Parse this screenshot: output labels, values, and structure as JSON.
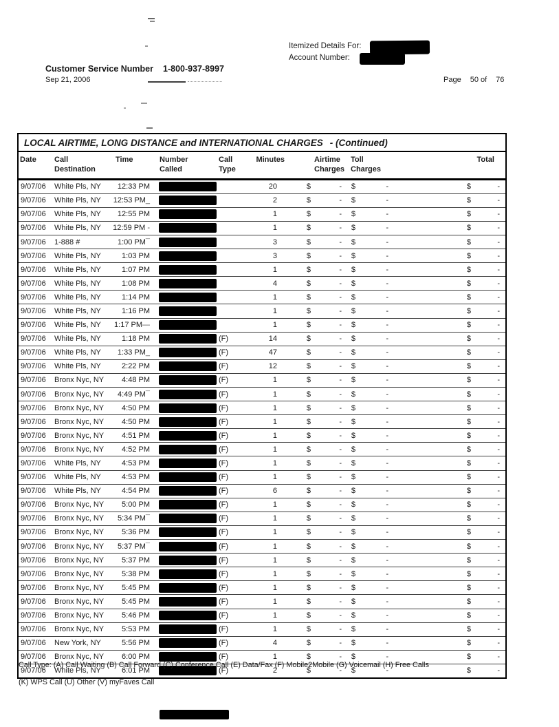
{
  "header": {
    "itemized_label": "Itemized Details For:",
    "account_label": "Account Number:",
    "customer_service_label": "Customer Service Number",
    "customer_service_number": "1-800-937-8997",
    "statement_date": "Sep 21, 2006",
    "page_label": "Page",
    "page_current": "50 of",
    "page_total": "76"
  },
  "table": {
    "title": "LOCAL AIRTIME, LONG DISTANCE and INTERNATIONAL CHARGES",
    "title_suffix": "- (Continued)",
    "currency_symbol": "$",
    "no_charge": "-",
    "columns": {
      "date": "Date",
      "destination": "Call\nDestination",
      "time": "Time",
      "number": "Number\nCalled",
      "type": "Call\nType",
      "minutes": "Minutes",
      "airtime": "Airtime\nCharges",
      "toll": "Toll\nCharges",
      "total": "Total"
    },
    "rows": [
      {
        "date": "9/07/06",
        "destination": "White Pls, NY",
        "time": "12:33 PM",
        "time_mark": "",
        "call_type": "",
        "minutes": "20"
      },
      {
        "date": "9/07/06",
        "destination": "White Pls, NY",
        "time": "12:53 PM",
        "time_mark": "_",
        "call_type": "",
        "minutes": "2"
      },
      {
        "date": "9/07/06",
        "destination": "White Pls, NY",
        "time": "12:55 PM",
        "time_mark": "",
        "call_type": "",
        "minutes": "1"
      },
      {
        "date": "9/07/06",
        "destination": "White Pls, NY",
        "time": "12:59 PM",
        "time_mark": " -",
        "call_type": "",
        "minutes": "1"
      },
      {
        "date": "9/07/06",
        "destination": "1-888 #",
        "time": "1:00 PM",
        "time_mark": "¯",
        "call_type": "",
        "minutes": "3"
      },
      {
        "date": "9/07/06",
        "destination": "White Pls, NY",
        "time": "1:03 PM",
        "time_mark": "",
        "call_type": "",
        "minutes": "3"
      },
      {
        "date": "9/07/06",
        "destination": "White Pls, NY",
        "time": "1:07 PM",
        "time_mark": "",
        "call_type": "",
        "minutes": "1"
      },
      {
        "date": "9/07/06",
        "destination": "White Pls, NY",
        "time": "1:08 PM",
        "time_mark": "",
        "call_type": "",
        "minutes": "4"
      },
      {
        "date": "9/07/06",
        "destination": "White Pls, NY",
        "time": "1:14 PM",
        "time_mark": "",
        "call_type": "",
        "minutes": "1"
      },
      {
        "date": "9/07/06",
        "destination": "White Pls, NY",
        "time": "1:16 PM",
        "time_mark": "",
        "call_type": "",
        "minutes": "1"
      },
      {
        "date": "9/07/06",
        "destination": "White Pls, NY",
        "time": "1:17 PM",
        "time_mark": "—",
        "call_type": "",
        "minutes": "1"
      },
      {
        "date": "9/07/06",
        "destination": "White Pls, NY",
        "time": "1:18 PM",
        "time_mark": "",
        "call_type": "(F)",
        "minutes": "14"
      },
      {
        "date": "9/07/06",
        "destination": "White Pls, NY",
        "time": "1:33 PM",
        "time_mark": "_",
        "call_type": "(F)",
        "minutes": "47"
      },
      {
        "date": "9/07/06",
        "destination": "White Pls, NY",
        "time": "2:22 PM",
        "time_mark": "",
        "call_type": "(F)",
        "minutes": "12"
      },
      {
        "date": "9/07/06",
        "destination": "Bronx Nyc, NY",
        "time": "4:48 PM",
        "time_mark": "",
        "call_type": "(F)",
        "minutes": "1"
      },
      {
        "date": "9/07/06",
        "destination": "Bronx Nyc, NY",
        "time": "4:49 PM",
        "time_mark": "¯",
        "call_type": "(F)",
        "minutes": "1"
      },
      {
        "date": "9/07/06",
        "destination": "Bronx Nyc, NY",
        "time": "4:50 PM",
        "time_mark": "",
        "call_type": "(F)",
        "minutes": "1"
      },
      {
        "date": "9/07/06",
        "destination": "Bronx Nyc, NY",
        "time": "4:50 PM",
        "time_mark": "",
        "call_type": "(F)",
        "minutes": "1"
      },
      {
        "date": "9/07/06",
        "destination": "Bronx Nyc, NY",
        "time": "4:51 PM",
        "time_mark": "",
        "call_type": "(F)",
        "minutes": "1"
      },
      {
        "date": "9/07/06",
        "destination": "Bronx Nyc, NY",
        "time": "4:52 PM",
        "time_mark": "",
        "call_type": "(F)",
        "minutes": "1"
      },
      {
        "date": "9/07/06",
        "destination": "White Pls, NY",
        "time": "4:53 PM",
        "time_mark": "",
        "call_type": "(F)",
        "minutes": "1"
      },
      {
        "date": "9/07/06",
        "destination": "White Pls, NY",
        "time": "4:53 PM",
        "time_mark": "",
        "call_type": "(F)",
        "minutes": "1"
      },
      {
        "date": "9/07/06",
        "destination": "White Pls, NY",
        "time": "4:54 PM",
        "time_mark": "",
        "call_type": "(F)",
        "minutes": "6"
      },
      {
        "date": "9/07/06",
        "destination": "Bronx Nyc, NY",
        "time": "5:00 PM",
        "time_mark": "",
        "call_type": "(F)",
        "minutes": "1"
      },
      {
        "date": "9/07/06",
        "destination": "Bronx Nyc, NY",
        "time": "5:34 PM",
        "time_mark": "¯",
        "call_type": "(F)",
        "minutes": "1"
      },
      {
        "date": "9/07/06",
        "destination": "Bronx Nyc, NY",
        "time": "5:36 PM",
        "time_mark": "",
        "call_type": "(F)",
        "minutes": "1"
      },
      {
        "date": "9/07/06",
        "destination": "Bronx Nyc, NY",
        "time": "5:37 PM",
        "time_mark": "¯",
        "call_type": "(F)",
        "minutes": "1"
      },
      {
        "date": "9/07/06",
        "destination": "Bronx Nyc, NY",
        "time": "5:37 PM",
        "time_mark": "",
        "call_type": "(F)",
        "minutes": "1"
      },
      {
        "date": "9/07/06",
        "destination": "Bronx Nyc, NY",
        "time": "5:38 PM",
        "time_mark": "",
        "call_type": "(F)",
        "minutes": "1"
      },
      {
        "date": "9/07/06",
        "destination": "Bronx Nyc, NY",
        "time": "5:45 PM",
        "time_mark": "",
        "call_type": "(F)",
        "minutes": "1"
      },
      {
        "date": "9/07/06",
        "destination": "Bronx Nyc, NY",
        "time": "5:45 PM",
        "time_mark": "",
        "call_type": "(F)",
        "minutes": "1"
      },
      {
        "date": "9/07/06",
        "destination": "Bronx Nyc, NY",
        "time": "5:46 PM",
        "time_mark": "",
        "call_type": "(F)",
        "minutes": "1"
      },
      {
        "date": "9/07/06",
        "destination": "Bronx Nyc, NY",
        "time": "5:53 PM",
        "time_mark": "",
        "call_type": "(F)",
        "minutes": "1"
      },
      {
        "date": "9/07/06",
        "destination": "New York, NY",
        "time": "5:56 PM",
        "time_mark": "",
        "call_type": "(F)",
        "minutes": "4"
      },
      {
        "date": "9/07/06",
        "destination": "Bronx Nyc, NY",
        "time": "6:00 PM",
        "time_mark": "",
        "call_type": "(F)",
        "minutes": "1"
      },
      {
        "date": "9/07/06",
        "destination": "White Pls, NY",
        "time": "6:01 PM",
        "time_mark": "",
        "call_type": "(F)",
        "minutes": "2"
      }
    ]
  },
  "footnotes": {
    "line1": "Call Type: (A) Call Waiting (B) Call Forward (C) Conference Call (E) Data/Fax (F) Mobile2Mobile (G) Voicemail (H) Free Calls",
    "line2": "(K) WPS Call (U) Other (V) myFaves Call"
  }
}
